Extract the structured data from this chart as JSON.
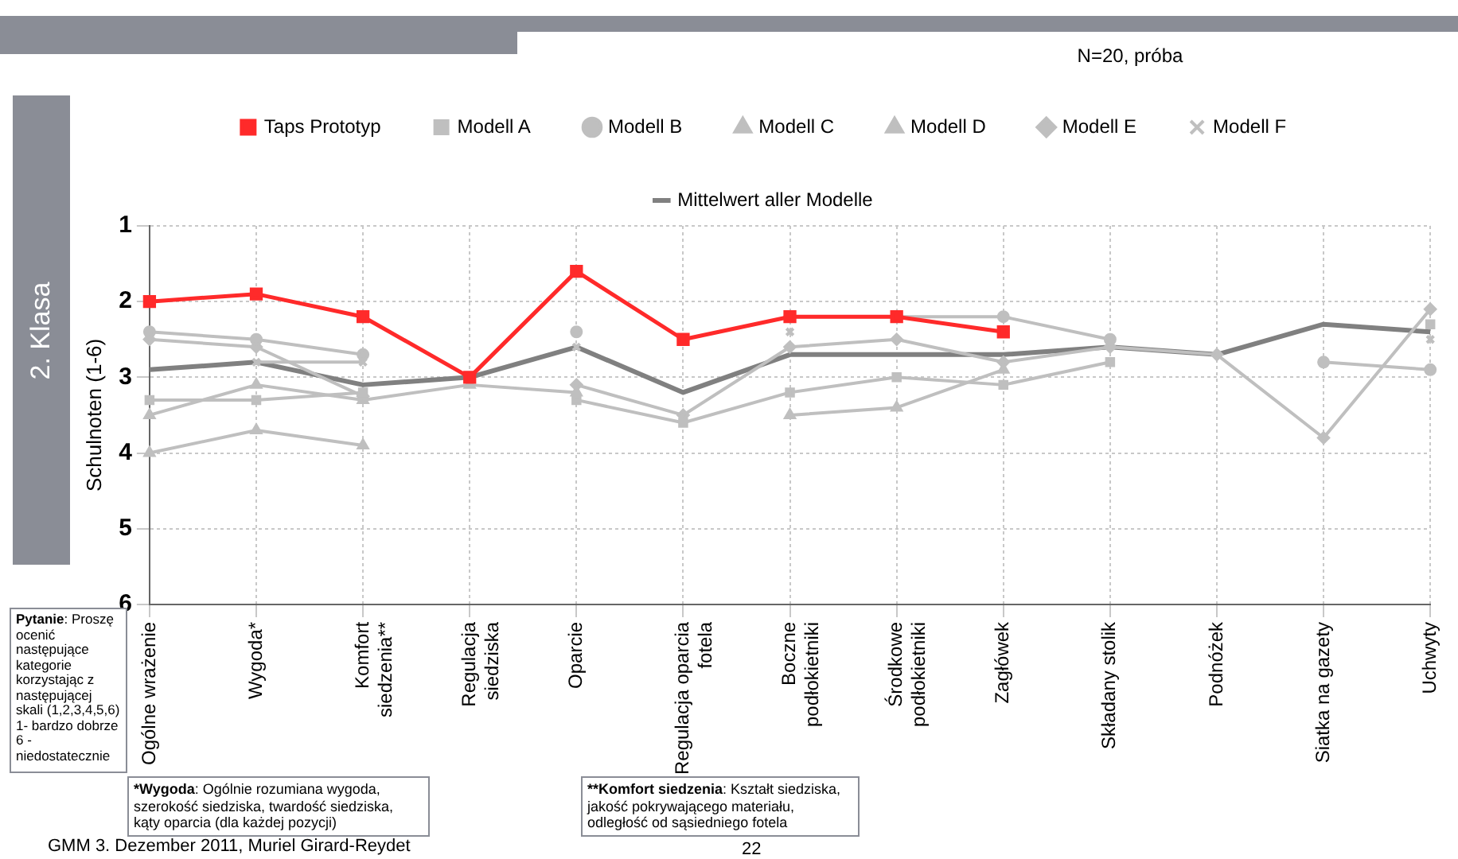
{
  "chart_data": {
    "type": "line",
    "subtitle": "N=20, próba",
    "ylabel": "Schulnoten (1-6)",
    "categories": [
      "Ogólne wrażenie",
      "Wygoda*",
      "Komfort siedzenia**",
      "Regulacja siedziska",
      "Oparcie",
      "Regulacja oparcia fotela",
      "Boczne podłokietniki",
      "Środkowe podłokietniki",
      "Zagłówek",
      "Składany stolik",
      "Podnóżek",
      "Siatka na gazety",
      "Uchwyty"
    ],
    "ylim": [
      6,
      1
    ],
    "yticks": [
      1,
      2,
      3,
      4,
      5,
      6
    ],
    "grid": true,
    "legend": "top",
    "series": [
      {
        "name": "Taps Prototyp",
        "color": "#ff2a2a",
        "marker": "square",
        "values": [
          2.0,
          1.9,
          2.2,
          3.0,
          1.6,
          2.5,
          2.2,
          2.2,
          2.4,
          null,
          null,
          null,
          null
        ]
      },
      {
        "name": "Modell A",
        "color": "#bfbfbf",
        "marker": "square",
        "values": [
          3.3,
          3.3,
          3.2,
          null,
          3.3,
          3.6,
          3.2,
          3.0,
          3.1,
          2.8,
          null,
          null,
          2.3
        ]
      },
      {
        "name": "Modell B",
        "color": "#bfbfbf",
        "marker": "circle",
        "values": [
          2.4,
          2.5,
          2.7,
          null,
          2.4,
          null,
          2.2,
          2.2,
          2.2,
          2.5,
          null,
          2.8,
          2.9
        ]
      },
      {
        "name": "Modell C",
        "color": "#bfbfbf",
        "marker": "triangle",
        "values": [
          3.5,
          3.1,
          3.3,
          3.1,
          3.2,
          null,
          3.5,
          3.4,
          2.9,
          null,
          null,
          null,
          null
        ]
      },
      {
        "name": "Modell D",
        "color": "#bfbfbf",
        "marker": "triangle",
        "values": [
          4.0,
          3.7,
          3.9,
          null,
          null,
          null,
          null,
          null,
          null,
          null,
          null,
          null,
          null
        ]
      },
      {
        "name": "Modell E",
        "color": "#bfbfbf",
        "marker": "diamond",
        "values": [
          2.5,
          2.6,
          3.25,
          null,
          3.1,
          3.5,
          2.6,
          2.5,
          2.8,
          2.6,
          2.7,
          3.8,
          2.1
        ]
      },
      {
        "name": "Modell F",
        "color": "#bfbfbf",
        "marker": "cross",
        "values": [
          null,
          2.8,
          2.8,
          null,
          2.6,
          null,
          2.4,
          null,
          null,
          null,
          null,
          null,
          2.5
        ]
      },
      {
        "name": "Mittelwert aller Modelle",
        "color": "#808080",
        "marker": "none",
        "values": [
          2.9,
          2.8,
          3.1,
          3.0,
          2.6,
          3.2,
          2.7,
          2.7,
          2.7,
          2.6,
          2.7,
          2.3,
          2.4
        ]
      }
    ],
    "annotations": [
      "2. Klasa",
      "Pytanie: Proszę ocenić następujące kategorie korzystając z następującej skali (1,2,3,4,5,6) 1- bardzo dobrze 6 - niedostatecznie",
      "*Wygoda: Ogólnie rozumiana wygoda, szerokość siedziska, twardość siedziska, kąty oparcia (dla każdej pozycji)",
      "**Komfort siedzenia: Kształt siedziska, jakość pokrywającego materiału, odległość od sąsiedniego fotela",
      "GMM 3. Dezember 2011, Muriel Girard-Reydet",
      "22"
    ]
  }
}
